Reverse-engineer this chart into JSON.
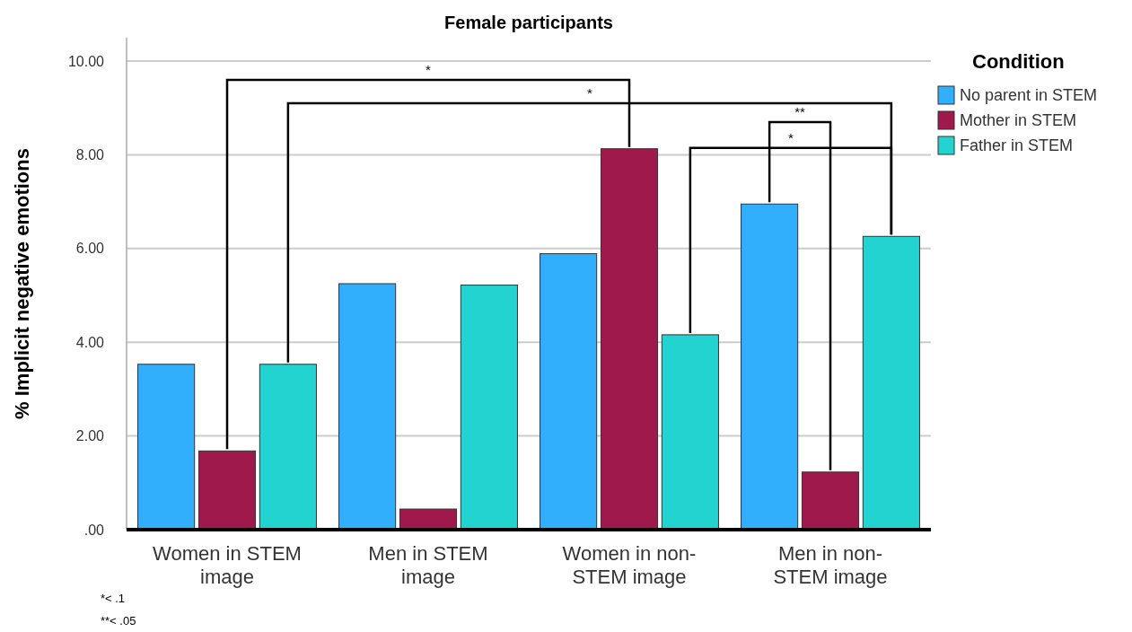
{
  "chart_data": {
    "type": "bar",
    "title": "Female participants",
    "ylabel": "% Implicit negative emotions",
    "legend_title": "Condition",
    "legend": "top right",
    "grid": "y",
    "categories": [
      "Women in STEM image",
      "Men in STEM image",
      "Women in non-STEM image",
      "Men in non-STEM image"
    ],
    "series": [
      {
        "name": "No parent in STEM",
        "color": "#31aefc",
        "values": [
          3.53,
          5.25,
          5.89,
          6.95
        ]
      },
      {
        "name": "Mother in STEM",
        "color": "#a0194c",
        "values": [
          1.68,
          0.44,
          8.13,
          1.23
        ]
      },
      {
        "name": "Father in STEM",
        "color": "#22d3d0",
        "values": [
          3.53,
          5.22,
          4.16,
          6.26
        ]
      }
    ],
    "ylim": [
      0,
      10.5
    ],
    "yticks": [
      {
        "value": 0,
        "label": ".00"
      },
      {
        "value": 2,
        "label": "2.00"
      },
      {
        "value": 4,
        "label": "4.00"
      },
      {
        "value": 6,
        "label": "6.00"
      },
      {
        "value": 8,
        "label": "8.00"
      },
      {
        "value": 10,
        "label": "10.00"
      }
    ],
    "annotations": [
      "*",
      "*",
      "**",
      "*",
      "*< .1",
      "**< .05"
    ]
  }
}
